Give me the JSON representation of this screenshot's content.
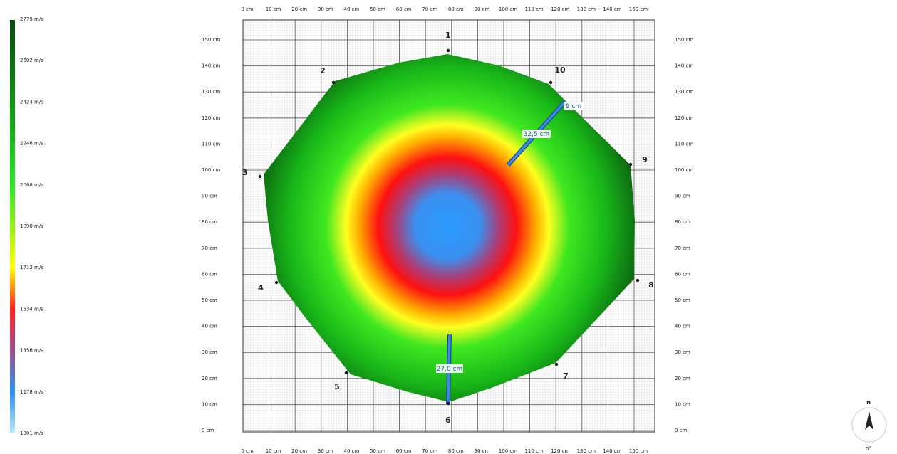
{
  "legend": {
    "labels": [
      "2779 m/s",
      "2602 m/s",
      "2424 m/s",
      "2246 m/s",
      "2068 m/s",
      "1890 m/s",
      "1712 m/s",
      "1534 m/s",
      "1356 m/s",
      "1178 m/s",
      "1001 m/s"
    ]
  },
  "axis": {
    "x_labels": [
      "0 cm",
      "10 cm",
      "20 cm",
      "30 cm",
      "40 cm",
      "50 cm",
      "60 cm",
      "70 cm",
      "80 cm",
      "90 cm",
      "100 cm",
      "110 cm",
      "120 cm",
      "130 cm",
      "140 cm",
      "150 cm"
    ],
    "y_labels": [
      "0 cm",
      "10 cm",
      "20 cm",
      "30 cm",
      "40 cm",
      "50 cm",
      "60 cm",
      "70 cm",
      "80 cm",
      "90 cm",
      "100 cm",
      "110 cm",
      "120 cm",
      "130 cm",
      "140 cm",
      "150 cm"
    ]
  },
  "sensors": [
    "1",
    "2",
    "3",
    "4",
    "5",
    "6",
    "7",
    "8",
    "9",
    "10"
  ],
  "measurements": [
    "32,5 cm",
    "27,0 cm",
    "9 cm"
  ],
  "compass": {
    "north": "N",
    "angle": "0°"
  }
}
